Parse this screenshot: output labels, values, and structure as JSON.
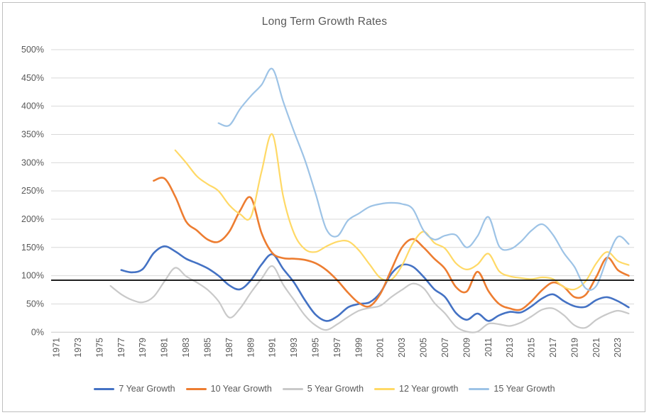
{
  "title": "Long Term Growth Rates",
  "colors": {
    "grid": "#d9d9d9",
    "axis_line": "#c9c9c9",
    "tick_text": "#595959",
    "title_text": "#595959",
    "frame_border": "#bfbfbf",
    "reference_line": "#000000"
  },
  "chart_data": {
    "type": "line",
    "title": "Long Term Growth Rates",
    "smooth": true,
    "grid": true,
    "legend_position": "bottom",
    "ylim": [
      0,
      500
    ],
    "y_tick_labels": [
      "0%",
      "50%",
      "100%",
      "150%",
      "200%",
      "250%",
      "300%",
      "350%",
      "400%",
      "450%",
      "500%"
    ],
    "x": [
      1971,
      1972,
      1973,
      1974,
      1975,
      1976,
      1977,
      1978,
      1979,
      1980,
      1981,
      1982,
      1983,
      1984,
      1985,
      1986,
      1987,
      1988,
      1989,
      1990,
      1991,
      1992,
      1993,
      1994,
      1995,
      1996,
      1997,
      1998,
      1999,
      2000,
      2001,
      2002,
      2003,
      2004,
      2005,
      2006,
      2007,
      2008,
      2009,
      2010,
      2011,
      2012,
      2013,
      2014,
      2015,
      2016,
      2017,
      2018,
      2019,
      2020,
      2021,
      2022,
      2023,
      2024
    ],
    "x_tick_labels": [
      "1971",
      "1973",
      "1975",
      "1977",
      "1979",
      "1981",
      "1983",
      "1985",
      "1987",
      "1989",
      "1991",
      "1993",
      "1995",
      "1997",
      "1999",
      "2001",
      "2003",
      "2005",
      "2007",
      "2009",
      "2011",
      "2013",
      "2015",
      "2017",
      "2019",
      "2021",
      "2023"
    ],
    "reference_line": {
      "value": 92,
      "color": "#000000"
    },
    "series": [
      {
        "name": "7 Year Growth",
        "color": "#4472c4",
        "width": 2.6,
        "values": [
          null,
          null,
          null,
          null,
          null,
          null,
          110,
          106,
          112,
          140,
          152,
          143,
          130,
          122,
          113,
          100,
          83,
          76,
          92,
          120,
          138,
          112,
          88,
          57,
          31,
          20,
          28,
          44,
          50,
          53,
          70,
          103,
          119,
          116,
          98,
          76,
          62,
          34,
          22,
          33,
          20,
          30,
          36,
          35,
          46,
          60,
          67,
          55,
          46,
          45,
          57,
          62,
          55,
          44
        ]
      },
      {
        "name": "10 Year Growth",
        "color": "#ed7d31",
        "width": 2.6,
        "values": [
          null,
          null,
          null,
          null,
          null,
          null,
          null,
          null,
          null,
          268,
          272,
          240,
          196,
          180,
          164,
          160,
          178,
          215,
          238,
          175,
          140,
          131,
          130,
          128,
          122,
          110,
          92,
          70,
          52,
          46,
          68,
          110,
          150,
          165,
          150,
          130,
          112,
          80,
          72,
          107,
          73,
          50,
          42,
          40,
          55,
          75,
          88,
          80,
          62,
          66,
          98,
          132,
          110,
          100
        ]
      },
      {
        "name": "5 Year Growth",
        "color": "#c9c9c9",
        "width": 2.2,
        "values": [
          null,
          null,
          null,
          null,
          null,
          82,
          67,
          57,
          53,
          63,
          90,
          114,
          99,
          88,
          75,
          55,
          26,
          42,
          70,
          95,
          117,
          84,
          57,
          30,
          12,
          4,
          14,
          27,
          38,
          43,
          47,
          62,
          75,
          86,
          78,
          52,
          33,
          10,
          1,
          1,
          15,
          14,
          11,
          17,
          28,
          40,
          42,
          30,
          12,
          8,
          22,
          32,
          38,
          33
        ]
      },
      {
        "name": "12 Year growth",
        "color": "#ffd966",
        "width": 2.2,
        "values": [
          null,
          null,
          null,
          null,
          null,
          null,
          null,
          null,
          null,
          null,
          null,
          322,
          300,
          276,
          262,
          250,
          225,
          209,
          204,
          285,
          350,
          240,
          175,
          147,
          142,
          152,
          160,
          161,
          145,
          120,
          96,
          93,
          118,
          157,
          178,
          158,
          148,
          122,
          111,
          120,
          139,
          108,
          99,
          96,
          94,
          97,
          94,
          80,
          76,
          90,
          122,
          142,
          126,
          119
        ]
      },
      {
        "name": "15 Year Growth",
        "color": "#9dc3e6",
        "width": 2.2,
        "values": [
          null,
          null,
          null,
          null,
          null,
          null,
          null,
          null,
          null,
          null,
          null,
          null,
          null,
          null,
          null,
          370,
          366,
          395,
          418,
          438,
          466,
          408,
          355,
          305,
          245,
          182,
          170,
          198,
          210,
          222,
          227,
          229,
          227,
          218,
          180,
          164,
          171,
          172,
          150,
          170,
          204,
          152,
          147,
          160,
          180,
          191,
          172,
          140,
          115,
          78,
          82,
          130,
          169,
          156
        ]
      }
    ]
  }
}
